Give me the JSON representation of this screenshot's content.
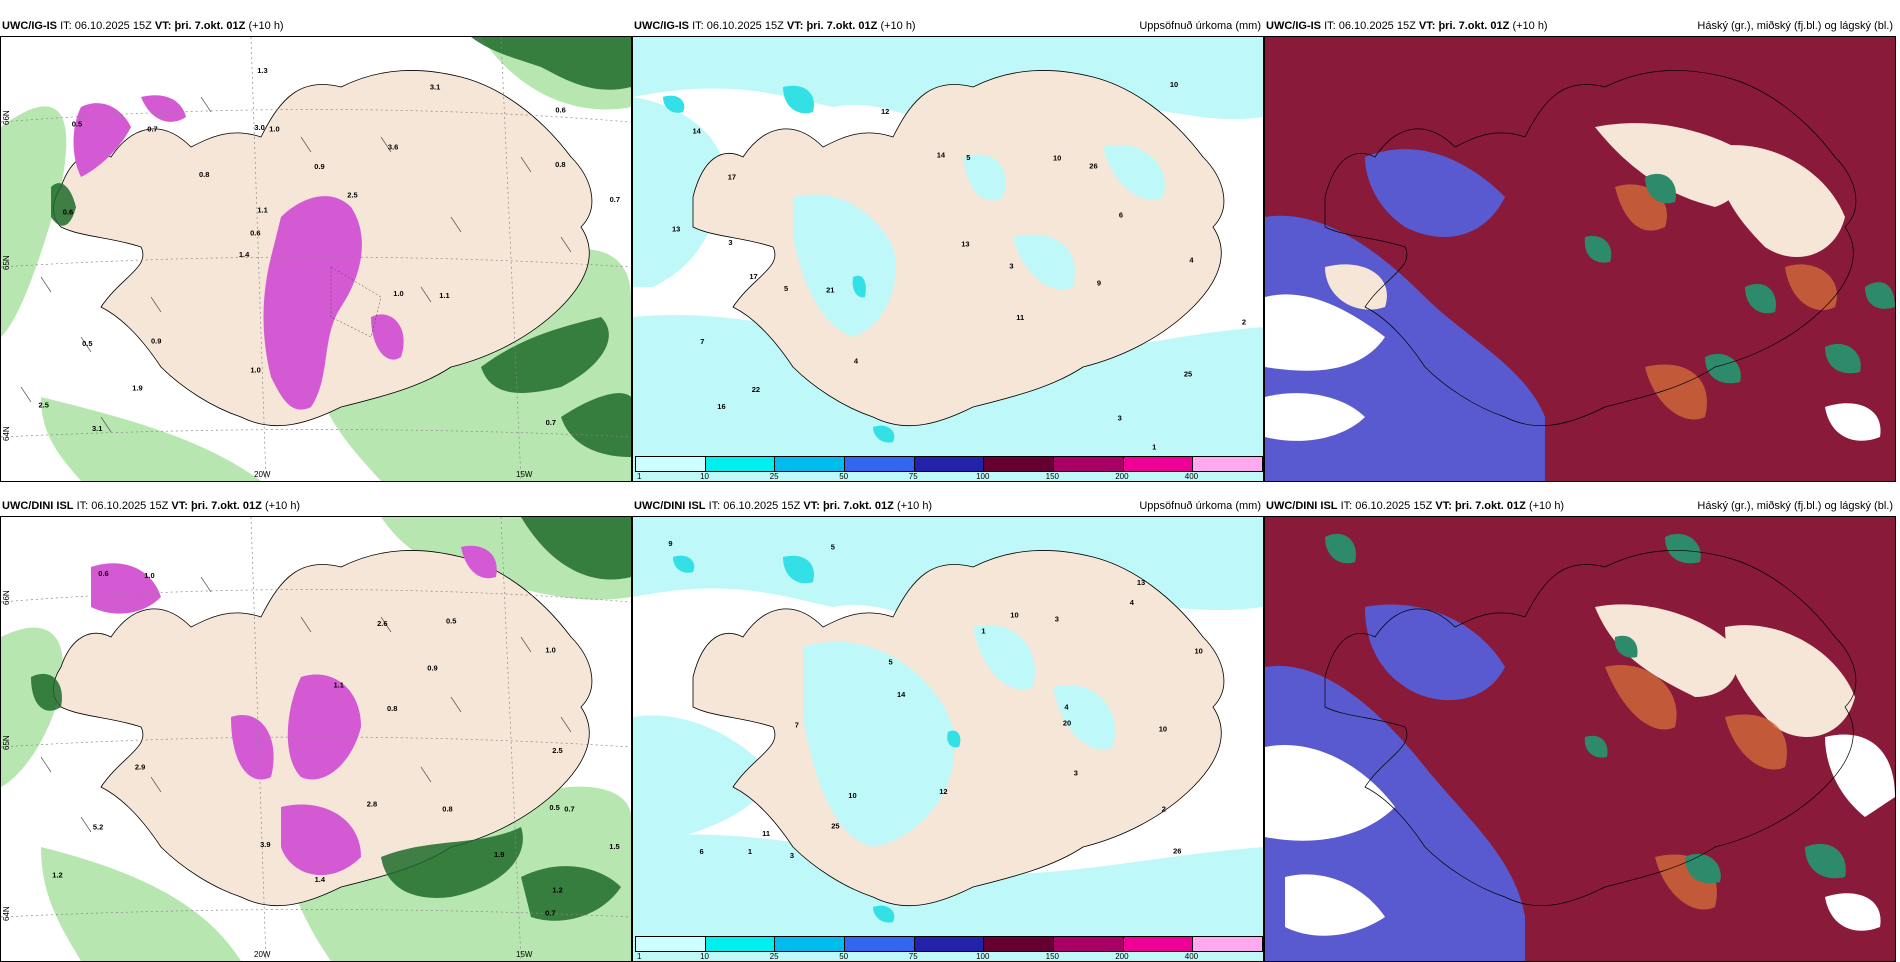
{
  "rows": [
    {
      "model": "UWC/IG-IS",
      "it_label": "IT:",
      "it_value": "06.10.2025 15Z",
      "vt_label": "VT:",
      "vt_value": "þri. 7.okt. 01Z",
      "lead": "(+10 h)"
    },
    {
      "model": "UWC/DINI ISL",
      "it_label": "IT:",
      "it_value": "06.10.2025 15Z",
      "vt_label": "VT:",
      "vt_value": "þri. 7.okt. 01Z",
      "lead": "(+10 h)"
    }
  ],
  "precip_title": "Uppsöfnuð úrkoma (mm)",
  "cloud_title": "Háský (gr.), miðský (fj.bl.) og lágský (bl.)",
  "axis_labels": {
    "lat_top": "66N",
    "lat_mid": "65N",
    "lat_bot": "64N",
    "lon_w20": "20W",
    "lon_w15": "15W"
  },
  "legend": {
    "labels": [
      "1",
      "10",
      "25",
      "50",
      "75",
      "100",
      "150",
      "200",
      "400"
    ],
    "colors": [
      "#ccffff",
      "#00eeee",
      "#00bbee",
      "#3366ee",
      "#2222aa",
      "#660033",
      "#aa0066",
      "#ee0099",
      "#ffaaee"
    ]
  },
  "colors": {
    "land": "#f5e6d8",
    "coast": "#000000",
    "light_green": "#b8e6b0",
    "dark_green": "#1f6b2a",
    "magenta": "#d45ad4",
    "cyan_light": "#bff8f8",
    "cyan": "#33e0e6",
    "cloud_high": "#8a1a3a",
    "cloud_mid": "#5a5ad0",
    "cloud_low": "#2d8a6a",
    "cloud_orange": "#d06a3a"
  },
  "labels_panel1": [
    "0.7",
    "0.6",
    "0.6",
    "1.4",
    "3.6",
    "3.1",
    "3.0",
    "0.9",
    "0.5",
    "0.8",
    "2.5",
    "1.9",
    "1.0",
    "2.5",
    "1.1",
    "0.5",
    "1.3",
    "0.7",
    "1.0",
    "0.8",
    "0.6",
    "1.0",
    "1.1",
    "0.7",
    "3.1",
    "0.9"
  ],
  "labels_panel2": [
    "1",
    "17",
    "11",
    "14",
    "25",
    "17",
    "22",
    "21",
    "26",
    "14",
    "10",
    "3",
    "4",
    "12",
    "3",
    "7",
    "9",
    "13",
    "13",
    "16",
    "10",
    "5",
    "6",
    "2",
    "4",
    "3",
    "5"
  ],
  "labels_panel4": [
    "5.2",
    "0.8",
    "0.5",
    "1.5",
    "2.6",
    "1.9",
    "1.1",
    "0.9",
    "0.7",
    "1.2",
    "1.0",
    "2.8",
    "2.5",
    "1.4",
    "0.6",
    "3.9",
    "0.7",
    "1.0",
    "1.2",
    "0.8",
    "2.9",
    "0.5"
  ],
  "labels_panel5": [
    "6",
    "3",
    "10",
    "20",
    "26",
    "4",
    "5",
    "12",
    "1",
    "3",
    "10",
    "11",
    "13",
    "10",
    "9",
    "5",
    "7",
    "14",
    "25",
    "10",
    "3",
    "2",
    "4",
    "1"
  ]
}
